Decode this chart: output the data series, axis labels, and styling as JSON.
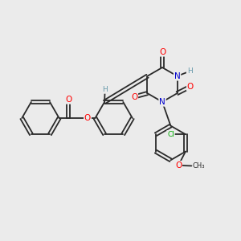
{
  "bg_color": "#ebebeb",
  "bond_color": "#2a2a2a",
  "bond_width": 1.3,
  "atom_colors": {
    "O": "#ff0000",
    "N": "#0000cc",
    "Cl": "#00aa00",
    "H": "#6699aa",
    "C": "#2a2a2a"
  },
  "font_size_atom": 7.5,
  "font_size_small": 6.5,
  "doffset": 0.07
}
